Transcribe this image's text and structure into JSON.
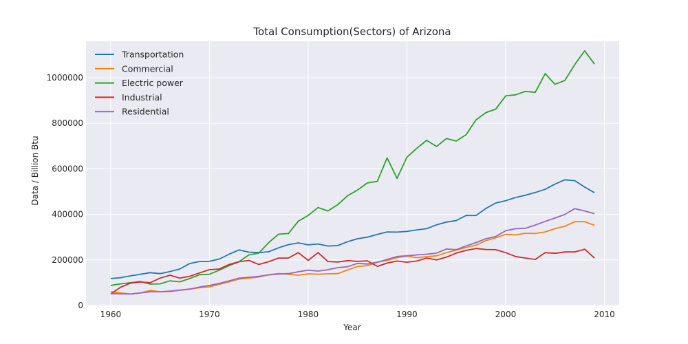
{
  "chart_data": {
    "type": "line",
    "title": "Total Consumption(Sectors) of Arizona",
    "xlabel": "Year",
    "ylabel": "Data / Billion Btu",
    "xlim": [
      1957.5,
      2011.5
    ],
    "ylim": [
      0,
      1160000
    ],
    "xticks": [
      1960,
      1970,
      1980,
      1990,
      2000,
      2010
    ],
    "yticks": [
      0,
      200000,
      400000,
      600000,
      800000,
      1000000
    ],
    "grid": true,
    "legend_position": "top-left",
    "x": [
      1960,
      1961,
      1962,
      1963,
      1964,
      1965,
      1966,
      1967,
      1968,
      1969,
      1970,
      1971,
      1972,
      1973,
      1974,
      1975,
      1976,
      1977,
      1978,
      1979,
      1980,
      1981,
      1982,
      1983,
      1984,
      1985,
      1986,
      1987,
      1988,
      1989,
      1990,
      1991,
      1992,
      1993,
      1994,
      1995,
      1996,
      1997,
      1998,
      1999,
      2000,
      2001,
      2002,
      2003,
      2004,
      2005,
      2006,
      2007,
      2008,
      2009
    ],
    "series": [
      {
        "name": "Transportation",
        "color": "#1f77b4",
        "values": [
          118000,
          122000,
          130000,
          137000,
          144000,
          140000,
          149000,
          160000,
          184000,
          193000,
          194000,
          204000,
          225000,
          244000,
          234000,
          232000,
          236000,
          253000,
          267000,
          275000,
          266000,
          270000,
          261000,
          263000,
          280000,
          293000,
          300000,
          312000,
          323000,
          322000,
          325000,
          332000,
          337000,
          354000,
          366000,
          373000,
          395000,
          395000,
          426000,
          450000,
          460000,
          474000,
          484000,
          496000,
          510000,
          533000,
          552000,
          548000,
          520000,
          495000
        ]
      },
      {
        "name": "Commercial",
        "color": "#ff7f0e",
        "values": [
          60000,
          55000,
          50000,
          55000,
          66000,
          60000,
          61000,
          67000,
          72000,
          78000,
          82000,
          93000,
          104000,
          116000,
          120000,
          125000,
          135000,
          140000,
          137000,
          133000,
          139000,
          137000,
          139000,
          140000,
          156000,
          171000,
          175000,
          190000,
          198000,
          210000,
          217000,
          210000,
          214000,
          218000,
          232000,
          243000,
          255000,
          265000,
          285000,
          297000,
          312000,
          310000,
          317000,
          316000,
          323000,
          337000,
          348000,
          368000,
          368000,
          352000
        ]
      },
      {
        "name": "Electric power",
        "color": "#2ca02c",
        "values": [
          88000,
          95000,
          100000,
          105000,
          94000,
          95000,
          108000,
          104000,
          118000,
          135000,
          137000,
          155000,
          175000,
          192000,
          222000,
          230000,
          276000,
          313000,
          316000,
          370000,
          395000,
          430000,
          415000,
          443000,
          482000,
          507000,
          538000,
          545000,
          648000,
          558000,
          651000,
          690000,
          725000,
          698000,
          733000,
          722000,
          750000,
          815000,
          847000,
          862000,
          920000,
          925000,
          940000,
          936000,
          1018000,
          971000,
          988000,
          1058000,
          1118000,
          1060000
        ]
      },
      {
        "name": "Industrial",
        "color": "#d62728",
        "values": [
          50000,
          80000,
          98000,
          103000,
          100000,
          120000,
          133000,
          120000,
          128000,
          143000,
          157000,
          160000,
          180000,
          192000,
          198000,
          180000,
          192000,
          208000,
          208000,
          232000,
          198000,
          232000,
          193000,
          191000,
          197000,
          194000,
          196000,
          172000,
          186000,
          195000,
          190000,
          195000,
          208000,
          200000,
          212000,
          230000,
          242000,
          250000,
          246000,
          245000,
          232000,
          215000,
          208000,
          202000,
          232000,
          229000,
          235000,
          235000,
          247000,
          208000
        ]
      },
      {
        "name": "Residential",
        "color": "#9467bd",
        "values": [
          52000,
          51000,
          50000,
          55000,
          60000,
          60000,
          63000,
          67000,
          72000,
          81000,
          88000,
          97000,
          108000,
          120000,
          124000,
          128000,
          134000,
          138000,
          140000,
          148000,
          155000,
          151000,
          157000,
          166000,
          170000,
          185000,
          182000,
          190000,
          202000,
          215000,
          218000,
          222000,
          225000,
          230000,
          248000,
          245000,
          262000,
          276000,
          293000,
          303000,
          328000,
          337000,
          339000,
          353000,
          369000,
          384000,
          400000,
          425000,
          415000,
          403000
        ]
      }
    ]
  }
}
